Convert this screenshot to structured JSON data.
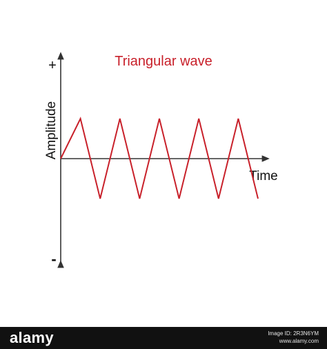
{
  "title": "Triangular wave",
  "axis": {
    "plus": "+",
    "minus": "-",
    "y_label": "Amplitude",
    "x_label": "Time"
  },
  "wave": {
    "type": "triangular",
    "x": [
      0,
      1,
      2,
      3,
      4,
      5,
      6,
      7,
      8,
      9,
      10
    ],
    "y": [
      0,
      1,
      -1,
      1,
      -1,
      1,
      -1,
      1,
      -1,
      1,
      -1
    ],
    "color": "#c8202a"
  },
  "colors": {
    "axis": "#333333",
    "title": "#c8202a",
    "text": "#111111"
  },
  "watermark": {
    "left": "alamy",
    "right_id": "Image ID: 2R3N6YM",
    "right_url": "www.alamy.com"
  }
}
